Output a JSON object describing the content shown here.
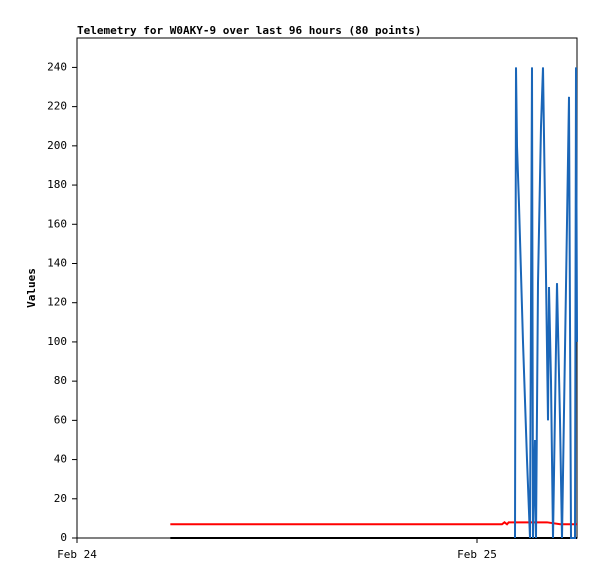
{
  "chart_data": {
    "type": "line",
    "title": "Telemetry for W0AKY-9 over last 96 hours (80 points)",
    "ylabel": "Values",
    "xlim": [
      0,
      30
    ],
    "ylim": [
      0,
      255
    ],
    "xticks": [
      {
        "value": 0,
        "label": "Feb 24"
      },
      {
        "value": 24,
        "label": "Feb 25"
      }
    ],
    "yticks": [
      0,
      20,
      40,
      60,
      80,
      100,
      120,
      140,
      160,
      180,
      200,
      220,
      240
    ],
    "series": [
      {
        "color": "#000000",
        "x": [
          5.6,
          30
        ],
        "values": [
          0,
          0
        ]
      },
      {
        "color": "#ff0000",
        "x": [
          5.6,
          25.5,
          25.65,
          25.8,
          25.9,
          26.0,
          28.2,
          29.0,
          30
        ],
        "values": [
          7,
          7,
          8,
          7,
          8,
          8,
          8,
          7,
          7
        ]
      },
      {
        "color": "#1a66b8",
        "x": [
          26.28,
          26.34,
          26.4,
          26.52,
          26.76,
          27.0,
          27.18,
          27.3,
          27.36,
          27.48,
          27.54,
          27.66,
          27.84,
          27.96,
          28.08,
          28.26,
          28.32,
          28.44,
          28.56,
          28.8,
          28.98,
          29.1,
          29.52,
          29.58,
          29.64,
          29.88,
          29.94,
          30
        ],
        "values": [
          0,
          240,
          200,
          170,
          100,
          40,
          0,
          240,
          0,
          50,
          0,
          130,
          210,
          240,
          170,
          60,
          128,
          80,
          0,
          130,
          60,
          0,
          225,
          110,
          0,
          0,
          240,
          100
        ]
      }
    ]
  }
}
